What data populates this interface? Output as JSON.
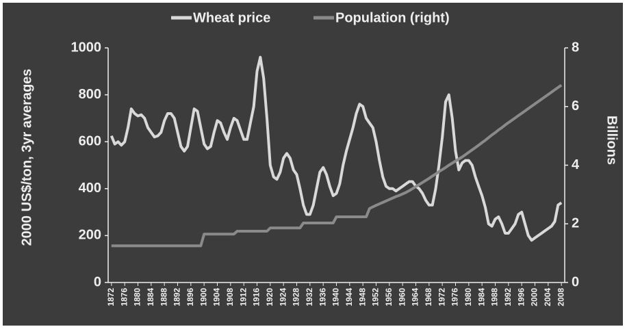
{
  "chart_data": {
    "type": "line",
    "legend": "top",
    "y_label": "2000 US$/ton, 3yr averages",
    "y2_label": "Billions",
    "x": [
      1872,
      1873,
      1874,
      1875,
      1876,
      1877,
      1878,
      1879,
      1880,
      1881,
      1882,
      1883,
      1884,
      1885,
      1886,
      1887,
      1888,
      1889,
      1890,
      1891,
      1892,
      1893,
      1894,
      1895,
      1896,
      1897,
      1898,
      1899,
      1900,
      1901,
      1902,
      1903,
      1904,
      1905,
      1906,
      1907,
      1908,
      1909,
      1910,
      1911,
      1912,
      1913,
      1914,
      1915,
      1916,
      1917,
      1918,
      1919,
      1920,
      1921,
      1922,
      1923,
      1924,
      1925,
      1926,
      1927,
      1928,
      1929,
      1930,
      1931,
      1932,
      1933,
      1934,
      1935,
      1936,
      1937,
      1938,
      1939,
      1940,
      1941,
      1942,
      1943,
      1944,
      1945,
      1946,
      1947,
      1948,
      1949,
      1950,
      1951,
      1952,
      1953,
      1954,
      1955,
      1956,
      1957,
      1958,
      1959,
      1960,
      1961,
      1962,
      1963,
      1964,
      1965,
      1966,
      1967,
      1968,
      1969,
      1970,
      1971,
      1972,
      1973,
      1974,
      1975,
      1976,
      1977,
      1978,
      1979,
      1980,
      1981,
      1982,
      1983,
      1984,
      1985,
      1986,
      1987,
      1988,
      1989,
      1990,
      1991,
      1992,
      1993,
      1994,
      1995,
      1996,
      1997,
      1998,
      1999,
      2000,
      2001,
      2002,
      2003,
      2004,
      2005,
      2006,
      2007,
      2008
    ],
    "series": [
      {
        "name": "Wheat price",
        "color": "#d9d9d9",
        "axis": "y",
        "values": [
          625,
          590,
          600,
          585,
          600,
          660,
          740,
          720,
          710,
          715,
          700,
          660,
          640,
          620,
          625,
          640,
          690,
          720,
          720,
          700,
          640,
          580,
          560,
          580,
          660,
          740,
          730,
          660,
          590,
          570,
          580,
          640,
          690,
          680,
          640,
          610,
          660,
          700,
          690,
          650,
          610,
          610,
          680,
          750,
          900,
          960,
          870,
          700,
          500,
          450,
          440,
          470,
          530,
          550,
          530,
          480,
          460,
          400,
          330,
          290,
          290,
          330,
          400,
          470,
          490,
          460,
          410,
          370,
          380,
          420,
          500,
          560,
          610,
          660,
          720,
          760,
          750,
          700,
          680,
          660,
          600,
          520,
          450,
          410,
          400,
          400,
          390,
          400,
          410,
          420,
          430,
          430,
          410,
          400,
          380,
          350,
          330,
          330,
          400,
          500,
          620,
          770,
          800,
          700,
          560,
          480,
          510,
          520,
          520,
          500,
          450,
          410,
          370,
          320,
          250,
          240,
          270,
          280,
          250,
          210,
          210,
          230,
          250,
          290,
          300,
          250,
          200,
          180,
          190,
          200,
          210,
          220,
          230,
          240,
          260,
          330,
          340
        ]
      },
      {
        "name": "Population (right)",
        "color": "#8a8a8a",
        "axis": "y2",
        "values": [
          1.25,
          1.25,
          1.25,
          1.25,
          1.25,
          1.25,
          1.25,
          1.25,
          1.25,
          1.25,
          1.25,
          1.25,
          1.25,
          1.25,
          1.25,
          1.25,
          1.25,
          1.25,
          1.25,
          1.25,
          1.25,
          1.25,
          1.25,
          1.25,
          1.25,
          1.25,
          1.25,
          1.25,
          1.65,
          1.65,
          1.65,
          1.65,
          1.65,
          1.65,
          1.65,
          1.65,
          1.65,
          1.65,
          1.75,
          1.75,
          1.75,
          1.75,
          1.75,
          1.75,
          1.75,
          1.75,
          1.75,
          1.75,
          1.86,
          1.86,
          1.86,
          1.86,
          1.86,
          1.86,
          1.86,
          1.86,
          1.86,
          1.86,
          2.03,
          2.03,
          2.03,
          2.03,
          2.03,
          2.03,
          2.03,
          2.03,
          2.03,
          2.03,
          2.24,
          2.24,
          2.24,
          2.24,
          2.24,
          2.24,
          2.24,
          2.24,
          2.24,
          2.24,
          2.52,
          2.58,
          2.63,
          2.68,
          2.73,
          2.78,
          2.83,
          2.88,
          2.93,
          2.97,
          3.02,
          3.07,
          3.13,
          3.2,
          3.27,
          3.34,
          3.41,
          3.48,
          3.55,
          3.63,
          3.7,
          3.78,
          3.85,
          3.92,
          4.0,
          4.07,
          4.14,
          4.21,
          4.28,
          4.36,
          4.44,
          4.52,
          4.6,
          4.68,
          4.77,
          4.85,
          4.94,
          5.03,
          5.11,
          5.2,
          5.28,
          5.37,
          5.45,
          5.53,
          5.61,
          5.69,
          5.77,
          5.85,
          5.93,
          6.01,
          6.09,
          6.17,
          6.25,
          6.33,
          6.41,
          6.49,
          6.57,
          6.65,
          6.73
        ]
      }
    ],
    "xlim": [
      1871,
      2009
    ],
    "xticks": [
      1872,
      1876,
      1880,
      1884,
      1888,
      1892,
      1896,
      1900,
      1904,
      1908,
      1912,
      1916,
      1920,
      1924,
      1928,
      1932,
      1936,
      1940,
      1944,
      1948,
      1952,
      1956,
      1960,
      1964,
      1968,
      1972,
      1976,
      1980,
      1984,
      1988,
      1992,
      1996,
      2000,
      2004,
      2008
    ],
    "ylim": [
      0,
      1000
    ],
    "yticks": [
      0,
      200,
      400,
      600,
      800,
      1000
    ],
    "y2lim": [
      0,
      8
    ],
    "y2ticks": [
      0,
      2,
      4,
      6,
      8
    ]
  }
}
